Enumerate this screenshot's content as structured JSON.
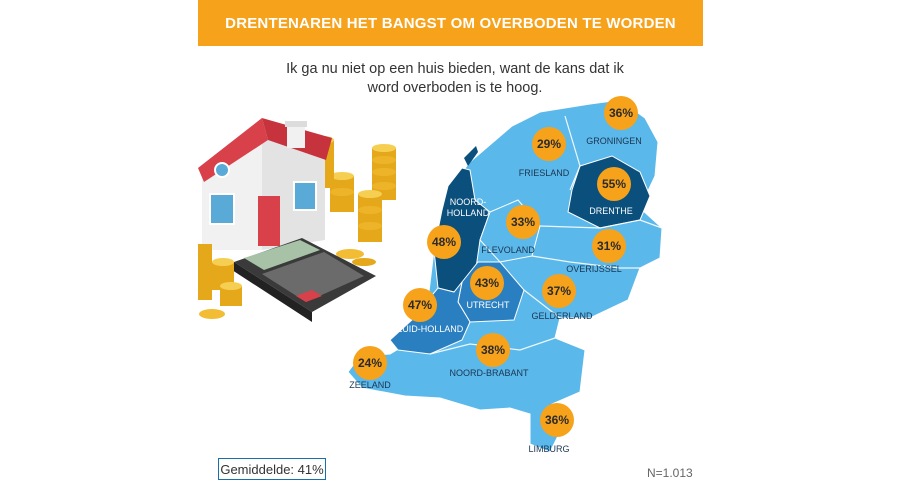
{
  "header": {
    "title": "DRENTENAREN HET BANGST OM OVERBODEN TE WORDEN"
  },
  "subtitle_line1": "Ik ga nu niet op een huis bieden, want de kans dat ik",
  "subtitle_line2": "word overboden is te hoog.",
  "average_label": "Gemiddelde: 41%",
  "sample_size": "N=1.013",
  "colors": {
    "banner": "#f7a21b",
    "badge": "#f7a21b",
    "light_blue": "#5bb8ea",
    "medium_blue": "#2a7fc1",
    "dark_blue": "#0b4f7c"
  },
  "chart_data": {
    "type": "map",
    "title": "DRENTENAREN HET BANGST OM OVERBODEN TE WORDEN",
    "subtitle": "Ik ga nu niet op een huis bieden, want de kans dat ik word overboden is te hoog.",
    "unit": "%",
    "average": 41,
    "n": "N=1.013",
    "regions": [
      {
        "name": "GRONINGEN",
        "value": 36,
        "display": "36%"
      },
      {
        "name": "FRIESLAND",
        "value": 29,
        "display": "29%"
      },
      {
        "name": "DRENTHE",
        "value": 55,
        "display": "55%"
      },
      {
        "name": "NOORD-HOLLAND",
        "value": 48,
        "display": "48%"
      },
      {
        "name": "FLEVOLAND",
        "value": 33,
        "display": "33%"
      },
      {
        "name": "OVERIJSSEL",
        "value": 31,
        "display": "31%"
      },
      {
        "name": "UTRECHT",
        "value": 43,
        "display": "43%"
      },
      {
        "name": "ZUID-HOLLAND",
        "value": 47,
        "display": "47%"
      },
      {
        "name": "GELDERLAND",
        "value": 37,
        "display": "37%"
      },
      {
        "name": "ZEELAND",
        "value": 24,
        "display": "24%"
      },
      {
        "name": "NOORD-BRABANT",
        "value": 38,
        "display": "38%"
      },
      {
        "name": "LIMBURG",
        "value": 36,
        "display": "36%"
      }
    ]
  }
}
